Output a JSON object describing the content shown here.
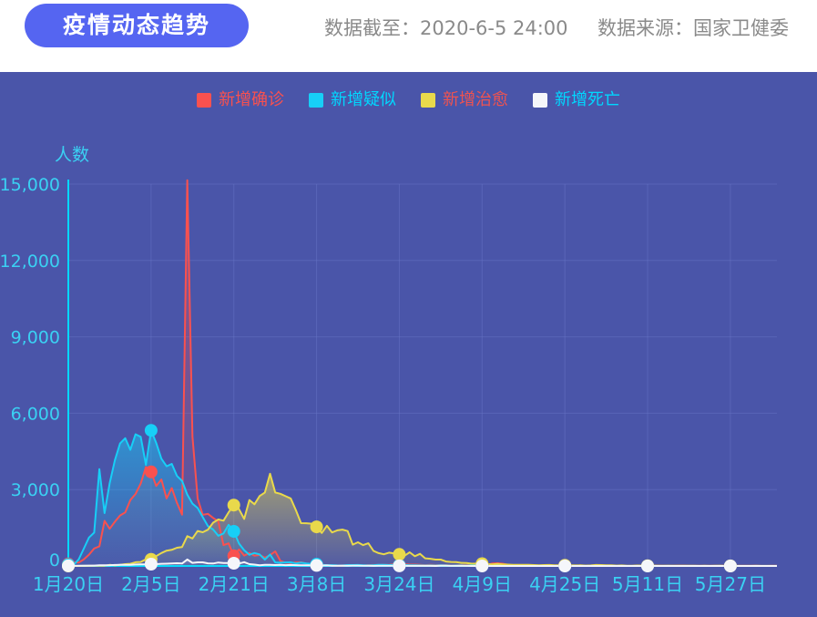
{
  "header": {
    "title": "疫情动态趋势",
    "data_until": "数据截至：2020-6-5 24:00",
    "data_source": "数据来源：国家卫健委"
  },
  "colors": {
    "page_bg": "#ffffff",
    "panel_bg": "#4a55a9",
    "title_pill_bg": "#5565f1",
    "header_text": "#8a8a8a",
    "axis_line": "#00d8ff",
    "grid_line": "#6b78c8",
    "tick_text": "#3ad1f3",
    "ylabel_text": "#3ad1f3"
  },
  "chart_data": {
    "type": "line",
    "title": "疫情动态趋势",
    "ylabel": "人数",
    "ylim": [
      0,
      15000
    ],
    "grid": true,
    "legend_position": "top-center",
    "days_total": 138,
    "x_tick_days": [
      0,
      16,
      32,
      48,
      64,
      80,
      96,
      112,
      128
    ],
    "x_tick_labels": [
      "1月20日",
      "2月5日",
      "2月21日",
      "3月8日",
      "3月24日",
      "4月9日",
      "4月25日",
      "5月11日",
      "5月27日"
    ],
    "y_ticks": [
      0,
      3000,
      6000,
      9000,
      12000,
      15000
    ],
    "y_tick_labels": [
      "0",
      "3,000",
      "6,000",
      "9,000",
      "12,000",
      "15,000"
    ],
    "marker_days": [
      0,
      16,
      32,
      48,
      64,
      80,
      96,
      112,
      128
    ],
    "series": [
      {
        "name": "新增确诊",
        "color": "#f9514f",
        "label_color": "#f9514f",
        "area_opacity": [
          0.45,
          0.02
        ],
        "values": [
          77,
          149,
          131,
          259,
          444,
          688,
          769,
          1771,
          1459,
          1737,
          1982,
          2102,
          2590,
          2829,
          3235,
          3887,
          3694,
          3143,
          3399,
          2656,
          3062,
          2478,
          2015,
          15152,
          5090,
          2641,
          2009,
          2048,
          1886,
          1749,
          820,
          889,
          397,
          648,
          409,
          508,
          406,
          433,
          327,
          427,
          573,
          202,
          125,
          119,
          139,
          143,
          99,
          44,
          40,
          19,
          24,
          15,
          8,
          11,
          20,
          16,
          21,
          13,
          34,
          39,
          41,
          46,
          39,
          78,
          47,
          67,
          55,
          54,
          45,
          31,
          48,
          36,
          35,
          31,
          19,
          30,
          39,
          32,
          62,
          63,
          42,
          46,
          99,
          108,
          89,
          46,
          26,
          27,
          16,
          27,
          12,
          16,
          11,
          30,
          6,
          3,
          12,
          11,
          6,
          22,
          4,
          12,
          1,
          2,
          2,
          3,
          1,
          2,
          1,
          1,
          14,
          17,
          1,
          15,
          7,
          4,
          8,
          5,
          7,
          6,
          5,
          5,
          2,
          4,
          2,
          3,
          11,
          7,
          1,
          2,
          4,
          4,
          2,
          16,
          1,
          1,
          5,
          5
        ]
      },
      {
        "name": "新增疑似",
        "color": "#17cff7",
        "label_color": "#00d8ff",
        "area_opacity": [
          0.5,
          0.05
        ],
        "values": [
          54,
          37,
          257,
          680,
          1118,
          1309,
          3806,
          2077,
          3248,
          4148,
          4812,
          5019,
          4562,
          5173,
          5072,
          3971,
          5328,
          4833,
          4214,
          3916,
          4008,
          3536,
          3342,
          2807,
          2450,
          2277,
          1918,
          1563,
          1432,
          1185,
          1277,
          1614,
          1361,
          882,
          620,
          439,
          508,
          452,
          248,
          452,
          141,
          129,
          141,
          143,
          102,
          129,
          98,
          84,
          72,
          43,
          31,
          33,
          23,
          17,
          36,
          35,
          39,
          28,
          23,
          31,
          43,
          47,
          35,
          44,
          33,
          41,
          28,
          24,
          21,
          18,
          22,
          19,
          24,
          23,
          12,
          18,
          22,
          14,
          27,
          19,
          15,
          13,
          24,
          26,
          21,
          12,
          9,
          8,
          6,
          9,
          5,
          7,
          6,
          9,
          3,
          2,
          5,
          4,
          3,
          6,
          2,
          3,
          2,
          1,
          2,
          1,
          1,
          1,
          0,
          1,
          3,
          4,
          1,
          2,
          1,
          1,
          2,
          1,
          1,
          0,
          1,
          1,
          0,
          1,
          0,
          1,
          2,
          1,
          0,
          0,
          1,
          1,
          0,
          2,
          0,
          1,
          0,
          1
        ]
      },
      {
        "name": "新增治愈",
        "color": "#e9d94b",
        "label_color": "#ef5350",
        "area_opacity": [
          0.55,
          0.05
        ],
        "values": [
          0,
          0,
          0,
          6,
          3,
          11,
          9,
          9,
          43,
          21,
          47,
          72,
          85,
          147,
          157,
          262,
          261,
          387,
          510,
          600,
          632,
          716,
          744,
          1171,
          1081,
          1373,
          1323,
          1425,
          1701,
          1824,
          1779,
          2109,
          2393,
          2230,
          1846,
          2589,
          2422,
          2750,
          2886,
          3622,
          2885,
          2837,
          2742,
          2652,
          2189,
          1681,
          1678,
          1661,
          1535,
          1297,
          1578,
          1318,
          1399,
          1430,
          1370,
          838,
          930,
          819,
          893,
          590,
          504,
          459,
          524,
          491,
          456,
          401,
          537,
          383,
          477,
          300,
          282,
          251,
          252,
          176,
          157,
          154,
          120,
          116,
          89,
          92,
          88,
          73,
          66,
          78,
          64,
          52,
          46,
          48,
          42,
          48,
          35,
          28,
          36,
          40,
          29,
          26,
          28,
          26,
          20,
          24,
          15,
          21,
          38,
          36,
          25,
          26,
          16,
          20,
          11,
          12,
          18,
          15,
          10,
          14,
          12,
          9,
          11,
          8,
          9,
          7,
          6,
          8,
          5,
          7,
          4,
          6,
          8,
          5,
          4,
          3,
          5,
          4,
          3,
          4,
          2,
          3,
          2,
          3
        ]
      },
      {
        "name": "新增死亡",
        "color": "#f5f6fa",
        "label_color": "#00d8ff",
        "area_opacity": [
          0.2,
          0.0
        ],
        "values": [
          2,
          3,
          8,
          8,
          16,
          15,
          24,
          26,
          26,
          38,
          43,
          46,
          45,
          57,
          64,
          65,
          73,
          73,
          86,
          89,
          97,
          108,
          97,
          254,
          121,
          143,
          142,
          105,
          98,
          136,
          114,
          118,
          109,
          97,
          150,
          71,
          52,
          29,
          44,
          47,
          35,
          42,
          31,
          38,
          31,
          30,
          28,
          27,
          22,
          17,
          22,
          11,
          7,
          13,
          10,
          14,
          13,
          11,
          8,
          3,
          7,
          6,
          9,
          7,
          4,
          6,
          5,
          3,
          5,
          4,
          2,
          1,
          7,
          6,
          4,
          3,
          2,
          2,
          0,
          2,
          1,
          3,
          0,
          2,
          1,
          1,
          0,
          0,
          0,
          0,
          0,
          0,
          0,
          0,
          0,
          0,
          0,
          0,
          0,
          0,
          0,
          0,
          0,
          0,
          0,
          0,
          0,
          0,
          0,
          0,
          0,
          0,
          0,
          0,
          0,
          0,
          0,
          0,
          0,
          0,
          0,
          0,
          0,
          0,
          0,
          0,
          0,
          0,
          0,
          0,
          0,
          0,
          0,
          0,
          0,
          0,
          0,
          0
        ]
      }
    ]
  }
}
